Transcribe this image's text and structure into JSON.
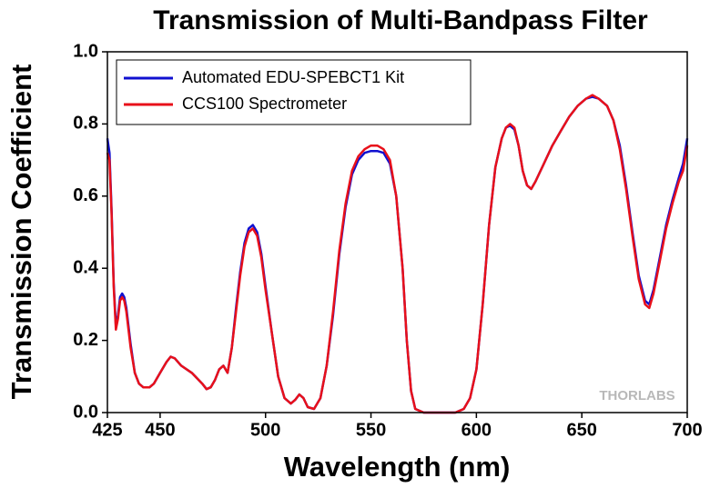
{
  "chart_data": {
    "type": "line",
    "title": "Transmission of Multi-Bandpass Filter",
    "xlabel": "Wavelength (nm)",
    "ylabel": "Transmission Coefficient",
    "watermark": "THORLABS",
    "legend": "upper left",
    "xlim": [
      425,
      700
    ],
    "ylim": [
      0,
      1
    ],
    "xticks": [
      425,
      450,
      500,
      550,
      600,
      650,
      700
    ],
    "yticks": [
      {
        "value": 0,
        "label": "0.0"
      },
      {
        "value": 0.2,
        "label": "0.2"
      },
      {
        "value": 0.4,
        "label": "0.4"
      },
      {
        "value": 0.6,
        "label": "0.6"
      },
      {
        "value": 0.8,
        "label": "0.8"
      },
      {
        "value": 1,
        "label": "1.0"
      }
    ],
    "x": [
      425,
      426,
      427,
      428,
      429,
      430,
      431,
      432,
      433,
      434,
      436,
      438,
      440,
      442,
      445,
      447,
      450,
      453,
      455,
      457,
      460,
      465,
      470,
      472,
      474,
      476,
      478,
      480,
      482,
      484,
      486,
      488,
      490,
      492,
      494,
      496,
      498,
      500,
      503,
      506,
      509,
      512,
      514,
      516,
      518,
      520,
      523,
      526,
      529,
      532,
      535,
      538,
      541,
      544,
      547,
      550,
      553,
      556,
      559,
      562,
      565,
      567,
      569,
      571,
      575,
      580,
      585,
      590,
      594,
      597,
      600,
      603,
      606,
      609,
      612,
      614,
      616,
      618,
      620,
      622,
      624,
      626,
      628,
      632,
      636,
      640,
      644,
      648,
      652,
      655,
      658,
      662,
      665,
      668,
      671,
      674,
      677,
      680,
      682,
      684,
      687,
      690,
      693,
      696,
      698,
      700
    ],
    "series": [
      {
        "name": "Automated EDU-SPEBCT1 Kit",
        "color": "#1010d0",
        "values": [
          0.76,
          0.72,
          0.56,
          0.36,
          0.24,
          0.27,
          0.32,
          0.33,
          0.32,
          0.29,
          0.19,
          0.11,
          0.08,
          0.07,
          0.07,
          0.08,
          0.11,
          0.14,
          0.155,
          0.15,
          0.13,
          0.11,
          0.08,
          0.065,
          0.07,
          0.09,
          0.12,
          0.13,
          0.11,
          0.18,
          0.29,
          0.39,
          0.47,
          0.51,
          0.52,
          0.5,
          0.44,
          0.35,
          0.22,
          0.1,
          0.04,
          0.025,
          0.035,
          0.05,
          0.04,
          0.015,
          0.01,
          0.04,
          0.13,
          0.27,
          0.44,
          0.57,
          0.66,
          0.7,
          0.72,
          0.725,
          0.725,
          0.72,
          0.69,
          0.6,
          0.4,
          0.2,
          0.06,
          0.01,
          0,
          0,
          0,
          0,
          0.01,
          0.04,
          0.12,
          0.3,
          0.52,
          0.68,
          0.76,
          0.79,
          0.795,
          0.785,
          0.74,
          0.67,
          0.63,
          0.62,
          0.64,
          0.69,
          0.74,
          0.78,
          0.82,
          0.85,
          0.87,
          0.875,
          0.87,
          0.85,
          0.81,
          0.74,
          0.63,
          0.5,
          0.38,
          0.31,
          0.3,
          0.34,
          0.43,
          0.52,
          0.59,
          0.65,
          0.69,
          0.76
        ]
      },
      {
        "name": "CCS100 Spectrometer",
        "color": "#e8101a",
        "values": [
          0.72,
          0.7,
          0.55,
          0.35,
          0.23,
          0.26,
          0.31,
          0.32,
          0.31,
          0.28,
          0.18,
          0.11,
          0.08,
          0.07,
          0.07,
          0.08,
          0.11,
          0.14,
          0.155,
          0.15,
          0.13,
          0.11,
          0.08,
          0.065,
          0.07,
          0.09,
          0.12,
          0.13,
          0.11,
          0.18,
          0.28,
          0.38,
          0.46,
          0.5,
          0.51,
          0.49,
          0.43,
          0.34,
          0.22,
          0.1,
          0.04,
          0.025,
          0.035,
          0.05,
          0.04,
          0.015,
          0.01,
          0.04,
          0.13,
          0.28,
          0.45,
          0.58,
          0.67,
          0.71,
          0.73,
          0.74,
          0.74,
          0.73,
          0.7,
          0.6,
          0.4,
          0.2,
          0.06,
          0.01,
          0,
          0,
          0,
          0,
          0.01,
          0.04,
          0.12,
          0.3,
          0.52,
          0.68,
          0.76,
          0.79,
          0.8,
          0.79,
          0.74,
          0.67,
          0.63,
          0.62,
          0.64,
          0.69,
          0.74,
          0.78,
          0.82,
          0.85,
          0.87,
          0.88,
          0.87,
          0.85,
          0.81,
          0.73,
          0.62,
          0.49,
          0.37,
          0.3,
          0.29,
          0.33,
          0.42,
          0.51,
          0.58,
          0.64,
          0.67,
          0.74
        ]
      }
    ]
  }
}
